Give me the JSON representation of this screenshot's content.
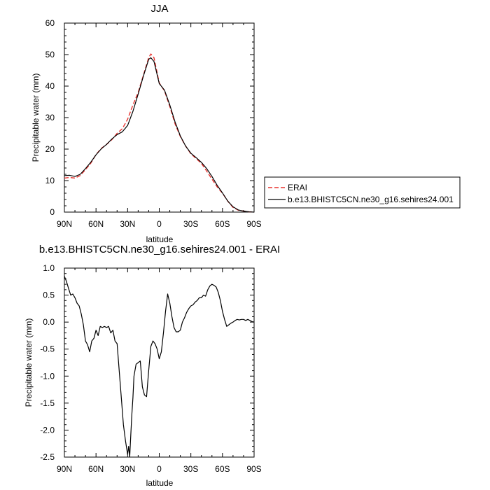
{
  "chart_data": [
    {
      "type": "line",
      "title": "JJA",
      "xlabel": "latitude",
      "ylabel": "Precipitable water (mm)",
      "xlim": [
        90,
        -90
      ],
      "ylim": [
        0,
        60
      ],
      "x_ticks": [
        90,
        60,
        30,
        0,
        -30,
        -60,
        -90
      ],
      "x_tick_labels": [
        "90N",
        "60N",
        "30N",
        "0",
        "30S",
        "60S",
        "90S"
      ],
      "y_ticks": [
        0,
        10,
        20,
        30,
        40,
        50,
        60
      ],
      "y_tick_labels": [
        "0",
        "10",
        "20",
        "30",
        "40",
        "50",
        "60"
      ],
      "grid": false,
      "legend_position": "right",
      "series": [
        {
          "name": "ERAI",
          "color": "#e8322e",
          "dash": "dashed",
          "x": [
            90,
            85,
            80,
            75,
            70,
            65,
            60,
            55,
            50,
            45,
            40,
            35,
            30,
            25,
            20,
            15,
            10,
            8,
            5,
            0,
            -5,
            -10,
            -15,
            -20,
            -25,
            -30,
            -35,
            -40,
            -45,
            -50,
            -55,
            -60,
            -65,
            -70,
            -75,
            -80,
            -85,
            -90
          ],
          "y": [
            10.8,
            11.0,
            10.8,
            11.6,
            13.5,
            15.5,
            18.3,
            20.2,
            21.5,
            23.0,
            25.0,
            26.5,
            29.5,
            34.0,
            38.0,
            43.5,
            49.0,
            50.2,
            49.0,
            41.0,
            38.5,
            33.5,
            28.0,
            24.0,
            21.0,
            18.5,
            17.0,
            15.5,
            13.0,
            10.5,
            8.0,
            6.0,
            3.5,
            1.5,
            0.6,
            0.3,
            0.1,
            0.0
          ]
        },
        {
          "name": "b.e13.BHISTC5CN.ne30_g16.sehires24.001",
          "color": "#000000",
          "dash": "solid",
          "x": [
            90,
            85,
            80,
            75,
            70,
            65,
            60,
            55,
            50,
            45,
            40,
            35,
            30,
            25,
            20,
            15,
            10,
            8,
            5,
            0,
            -5,
            -10,
            -15,
            -20,
            -25,
            -30,
            -35,
            -40,
            -45,
            -50,
            -55,
            -60,
            -65,
            -70,
            -75,
            -80,
            -85,
            -90
          ],
          "y": [
            11.6,
            11.7,
            11.3,
            12.0,
            13.8,
            15.8,
            18.2,
            20.1,
            21.5,
            23.2,
            24.6,
            25.5,
            27.5,
            32.0,
            37.5,
            43.2,
            48.5,
            49.0,
            47.8,
            40.8,
            38.7,
            34.0,
            28.6,
            24.2,
            21.0,
            18.7,
            17.3,
            15.8,
            13.8,
            11.3,
            8.5,
            6.1,
            3.5,
            1.7,
            0.7,
            0.3,
            0.1,
            0.0
          ]
        }
      ]
    },
    {
      "type": "line",
      "title": "b.e13.BHISTC5CN.ne30_g16.sehires24.001 - ERAI",
      "xlabel": "latitude",
      "ylabel": "Precipitable water (mm)",
      "xlim": [
        90,
        -90
      ],
      "ylim": [
        -2.5,
        1.0
      ],
      "x_ticks": [
        90,
        60,
        30,
        0,
        -30,
        -60,
        -90
      ],
      "x_tick_labels": [
        "90N",
        "60N",
        "30N",
        "0",
        "30S",
        "60S",
        "90S"
      ],
      "y_ticks": [
        -2.5,
        -2.0,
        -1.5,
        -1.0,
        -0.5,
        0.0,
        0.5,
        1.0
      ],
      "y_tick_labels": [
        "-2.5",
        "-2.0",
        "-1.5",
        "-1.0",
        "-0.5",
        "0.0",
        "0.5",
        "1.0"
      ],
      "grid": false,
      "series": [
        {
          "color": "#000000",
          "dash": "solid",
          "x": [
            90,
            88,
            86,
            84,
            82,
            80,
            78,
            76,
            74,
            72,
            70,
            68,
            66,
            64,
            62,
            60,
            58,
            56,
            54,
            52,
            50,
            48,
            46,
            44,
            42,
            40,
            38,
            36,
            34,
            32,
            30,
            29,
            28,
            27,
            26,
            25,
            24,
            22,
            20,
            18,
            16,
            14,
            12,
            10,
            8,
            6,
            4,
            2,
            0,
            -2,
            -4,
            -6,
            -8,
            -10,
            -12,
            -14,
            -16,
            -18,
            -20,
            -22,
            -24,
            -26,
            -28,
            -30,
            -32,
            -34,
            -36,
            -38,
            -40,
            -42,
            -44,
            -46,
            -48,
            -50,
            -52,
            -54,
            -56,
            -58,
            -60,
            -62,
            -64,
            -66,
            -68,
            -70,
            -72,
            -74,
            -76,
            -78,
            -80,
            -82,
            -84,
            -86,
            -88,
            -90
          ],
          "y": [
            0.85,
            0.75,
            0.62,
            0.5,
            0.52,
            0.45,
            0.35,
            0.3,
            0.15,
            -0.05,
            -0.35,
            -0.42,
            -0.55,
            -0.35,
            -0.3,
            -0.15,
            -0.25,
            -0.08,
            -0.1,
            -0.08,
            -0.1,
            -0.08,
            -0.2,
            -0.15,
            -0.35,
            -0.4,
            -0.9,
            -1.4,
            -1.9,
            -2.2,
            -2.45,
            -2.3,
            -2.5,
            -2.1,
            -1.7,
            -1.4,
            -1.0,
            -0.78,
            -0.75,
            -0.72,
            -1.2,
            -1.35,
            -1.38,
            -0.9,
            -0.45,
            -0.35,
            -0.4,
            -0.5,
            -0.68,
            -0.55,
            -0.2,
            0.2,
            0.52,
            0.35,
            0.1,
            -0.1,
            -0.18,
            -0.18,
            -0.15,
            0.0,
            0.08,
            0.18,
            0.25,
            0.3,
            0.32,
            0.37,
            0.4,
            0.45,
            0.45,
            0.5,
            0.48,
            0.6,
            0.67,
            0.7,
            0.68,
            0.65,
            0.55,
            0.4,
            0.2,
            0.05,
            -0.08,
            -0.05,
            -0.02,
            0.0,
            0.03,
            0.05,
            0.04,
            0.05,
            0.05,
            0.03,
            0.05,
            0.03,
            0.01,
            0.0
          ]
        }
      ]
    }
  ],
  "legend": {
    "items": [
      {
        "label": "ERAI",
        "color": "#e8322e",
        "dash": "dashed"
      },
      {
        "label": "b.e13.BHISTC5CN.ne30_g16.sehires24.001",
        "color": "#000000",
        "dash": "solid"
      }
    ]
  }
}
